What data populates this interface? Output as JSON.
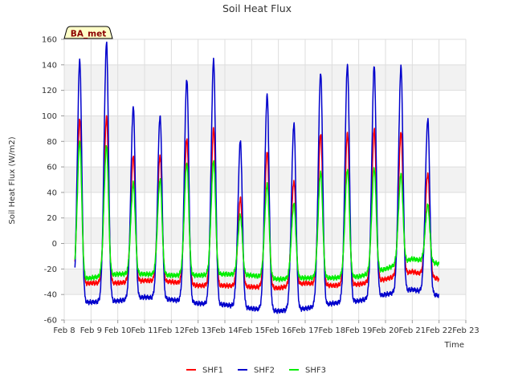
{
  "chart_data": {
    "type": "line",
    "title": "Soil Heat Flux",
    "xlabel": "Time",
    "ylabel": "Soil Heat Flux (W/m2)",
    "badge": "BA_met",
    "ylim": [
      -60,
      160
    ],
    "yticks": [
      -60,
      -40,
      -20,
      0,
      20,
      40,
      60,
      80,
      100,
      120,
      140,
      160
    ],
    "xlim": [
      8,
      23
    ],
    "xticks": [
      8,
      9,
      10,
      11,
      12,
      13,
      14,
      15,
      16,
      17,
      18,
      19,
      20,
      21,
      22,
      23
    ],
    "xtick_labels": [
      "Feb 8",
      "Feb 9",
      "Feb 10",
      "Feb 11",
      "Feb 12",
      "Feb 13",
      "Feb 14",
      "Feb 15",
      "Feb 16",
      "Feb 17",
      "Feb 18",
      "Feb 19",
      "Feb 20",
      "Feb 21",
      "Feb 22",
      "Feb 23"
    ],
    "grid": true,
    "legend_position": "bottom-center",
    "series": [
      {
        "name": "SHF1",
        "color": "#ff0000",
        "start": 8.4,
        "end": 22.0,
        "peaks": [
          97,
          99,
          69,
          69,
          82,
          90,
          35,
          72,
          49,
          86,
          86,
          89,
          87,
          55
        ],
        "troughs": [
          -33,
          -31,
          -31,
          -29,
          -30,
          -33,
          -33,
          -34,
          -35,
          -31,
          -33,
          -32,
          -28,
          -22,
          -28
        ]
      },
      {
        "name": "SHF2",
        "color": "#0000cc",
        "start": 8.4,
        "end": 22.0,
        "peaks": [
          143,
          157,
          107,
          100,
          129,
          144,
          80,
          116,
          94,
          134,
          140,
          139,
          138,
          97
        ],
        "troughs": [
          -47,
          -46,
          -45,
          -42,
          -44,
          -47,
          -48,
          -51,
          -53,
          -51,
          -47,
          -45,
          -40,
          -36,
          -41
        ]
      },
      {
        "name": "SHF3",
        "color": "#00ee00",
        "start": 8.4,
        "end": 22.0,
        "peaks": [
          80,
          76,
          47,
          50,
          63,
          65,
          22,
          46,
          31,
          56,
          58,
          59,
          54,
          30
        ],
        "troughs": [
          -30,
          -27,
          -24,
          -24,
          -25,
          -25,
          -24,
          -25,
          -28,
          -27,
          -27,
          -26,
          -20,
          -12,
          -16
        ]
      }
    ]
  }
}
